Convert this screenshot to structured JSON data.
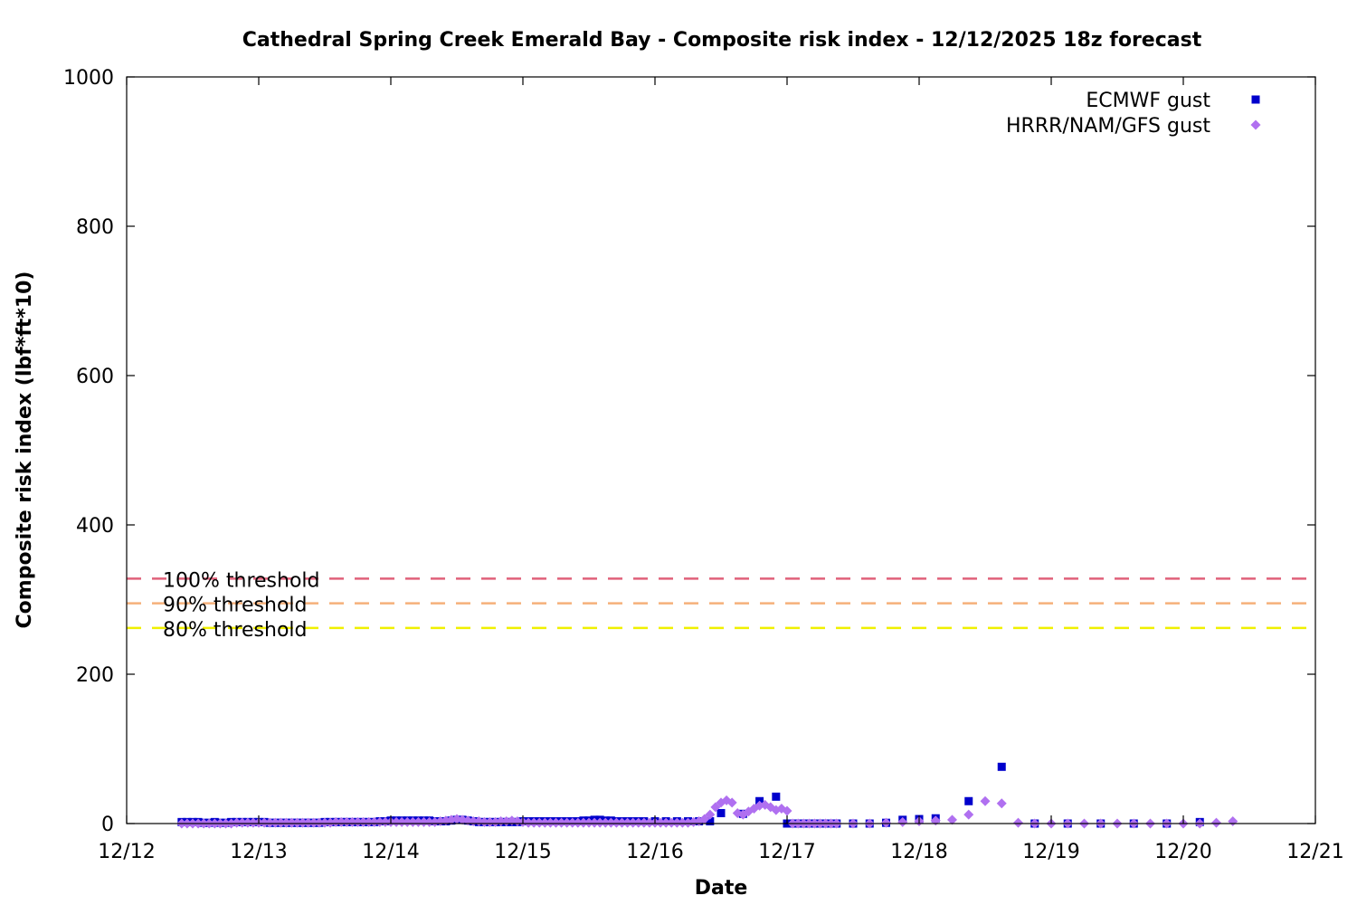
{
  "chart_data": {
    "type": "scatter",
    "title": "Cathedral Spring Creek Emerald Bay - Composite risk index - 12/12/2025 18z forecast",
    "xlabel": "Date",
    "ylabel": "Composite risk index (lbf*ft*10)",
    "xlim": [
      "2025-12-12 00:00",
      "2025-12-21 00:00"
    ],
    "ylim": [
      0,
      1000
    ],
    "x_ticks": [
      "12/12",
      "12/13",
      "12/14",
      "12/15",
      "12/16",
      "12/17",
      "12/18",
      "12/19",
      "12/20",
      "12/21"
    ],
    "y_ticks": [
      0,
      200,
      400,
      600,
      800,
      1000
    ],
    "grid": false,
    "legend_position": "top-right",
    "thresholds": [
      {
        "label": "100% threshold",
        "value": 328,
        "color": "#e0607a"
      },
      {
        "label": "90% threshold",
        "value": 295,
        "color": "#f5b07a"
      },
      {
        "label": "80% threshold",
        "value": 262,
        "color": "#f0f000"
      }
    ],
    "series": [
      {
        "name": "ECMWF gust",
        "marker": "square",
        "color": "#0000cc",
        "points": [
          [
            "2025-12-12 10:00",
            2
          ],
          [
            "2025-12-12 11:00",
            2
          ],
          [
            "2025-12-12 12:00",
            2
          ],
          [
            "2025-12-12 13:00",
            2
          ],
          [
            "2025-12-12 14:00",
            1
          ],
          [
            "2025-12-12 15:00",
            1
          ],
          [
            "2025-12-12 16:00",
            2
          ],
          [
            "2025-12-12 17:00",
            1
          ],
          [
            "2025-12-12 18:00",
            1
          ],
          [
            "2025-12-12 19:00",
            2
          ],
          [
            "2025-12-12 20:00",
            2
          ],
          [
            "2025-12-12 21:00",
            2
          ],
          [
            "2025-12-12 22:00",
            2
          ],
          [
            "2025-12-12 23:00",
            2
          ],
          [
            "2025-12-13 00:00",
            2
          ],
          [
            "2025-12-13 01:00",
            2
          ],
          [
            "2025-12-13 02:00",
            1
          ],
          [
            "2025-12-13 03:00",
            1
          ],
          [
            "2025-12-13 04:00",
            1
          ],
          [
            "2025-12-13 05:00",
            1
          ],
          [
            "2025-12-13 06:00",
            1
          ],
          [
            "2025-12-13 07:00",
            1
          ],
          [
            "2025-12-13 08:00",
            1
          ],
          [
            "2025-12-13 09:00",
            1
          ],
          [
            "2025-12-13 10:00",
            1
          ],
          [
            "2025-12-13 11:00",
            1
          ],
          [
            "2025-12-13 12:00",
            2
          ],
          [
            "2025-12-13 13:00",
            2
          ],
          [
            "2025-12-13 14:00",
            2
          ],
          [
            "2025-12-13 15:00",
            2
          ],
          [
            "2025-12-13 16:00",
            2
          ],
          [
            "2025-12-13 17:00",
            2
          ],
          [
            "2025-12-13 18:00",
            2
          ],
          [
            "2025-12-13 19:00",
            2
          ],
          [
            "2025-12-13 20:00",
            2
          ],
          [
            "2025-12-13 21:00",
            2
          ],
          [
            "2025-12-13 22:00",
            3
          ],
          [
            "2025-12-13 23:00",
            3
          ],
          [
            "2025-12-14 00:00",
            4
          ],
          [
            "2025-12-14 01:00",
            4
          ],
          [
            "2025-12-14 02:00",
            4
          ],
          [
            "2025-12-14 03:00",
            4
          ],
          [
            "2025-12-14 04:00",
            4
          ],
          [
            "2025-12-14 05:00",
            4
          ],
          [
            "2025-12-14 06:00",
            4
          ],
          [
            "2025-12-14 07:00",
            4
          ],
          [
            "2025-12-14 08:00",
            3
          ],
          [
            "2025-12-14 09:00",
            3
          ],
          [
            "2025-12-14 10:00",
            3
          ],
          [
            "2025-12-14 11:00",
            4
          ],
          [
            "2025-12-14 12:00",
            5
          ],
          [
            "2025-12-14 13:00",
            5
          ],
          [
            "2025-12-14 14:00",
            4
          ],
          [
            "2025-12-14 15:00",
            3
          ],
          [
            "2025-12-14 16:00",
            2
          ],
          [
            "2025-12-14 17:00",
            2
          ],
          [
            "2025-12-14 18:00",
            2
          ],
          [
            "2025-12-14 19:00",
            2
          ],
          [
            "2025-12-14 20:00",
            2
          ],
          [
            "2025-12-14 21:00",
            2
          ],
          [
            "2025-12-14 22:00",
            2
          ],
          [
            "2025-12-14 23:00",
            2
          ],
          [
            "2025-12-15 00:00",
            3
          ],
          [
            "2025-12-15 01:00",
            3
          ],
          [
            "2025-12-15 02:00",
            3
          ],
          [
            "2025-12-15 03:00",
            3
          ],
          [
            "2025-12-15 04:00",
            3
          ],
          [
            "2025-12-15 05:00",
            3
          ],
          [
            "2025-12-15 06:00",
            3
          ],
          [
            "2025-12-15 07:00",
            3
          ],
          [
            "2025-12-15 08:00",
            3
          ],
          [
            "2025-12-15 09:00",
            3
          ],
          [
            "2025-12-15 10:00",
            3
          ],
          [
            "2025-12-15 11:00",
            4
          ],
          [
            "2025-12-15 12:00",
            4
          ],
          [
            "2025-12-15 13:00",
            5
          ],
          [
            "2025-12-15 14:00",
            5
          ],
          [
            "2025-12-15 15:00",
            4
          ],
          [
            "2025-12-15 16:00",
            4
          ],
          [
            "2025-12-15 17:00",
            3
          ],
          [
            "2025-12-15 18:00",
            3
          ],
          [
            "2025-12-15 19:00",
            3
          ],
          [
            "2025-12-15 20:00",
            3
          ],
          [
            "2025-12-15 21:00",
            3
          ],
          [
            "2025-12-15 22:00",
            3
          ],
          [
            "2025-12-16 00:00",
            3
          ],
          [
            "2025-12-16 02:00",
            3
          ],
          [
            "2025-12-16 04:00",
            3
          ],
          [
            "2025-12-16 06:00",
            3
          ],
          [
            "2025-12-16 08:00",
            3
          ],
          [
            "2025-12-16 10:00",
            3
          ],
          [
            "2025-12-16 12:00",
            14
          ],
          [
            "2025-12-16 16:00",
            13
          ],
          [
            "2025-12-16 19:00",
            30
          ],
          [
            "2025-12-16 22:00",
            36
          ],
          [
            "2025-12-17 00:00",
            0
          ],
          [
            "2025-12-17 01:00",
            0
          ],
          [
            "2025-12-17 02:00",
            0
          ],
          [
            "2025-12-17 03:00",
            0
          ],
          [
            "2025-12-17 04:00",
            0
          ],
          [
            "2025-12-17 05:00",
            0
          ],
          [
            "2025-12-17 06:00",
            0
          ],
          [
            "2025-12-17 07:00",
            0
          ],
          [
            "2025-12-17 08:00",
            0
          ],
          [
            "2025-12-17 09:00",
            0
          ],
          [
            "2025-12-17 12:00",
            0
          ],
          [
            "2025-12-17 15:00",
            0
          ],
          [
            "2025-12-17 18:00",
            1
          ],
          [
            "2025-12-17 21:00",
            5
          ],
          [
            "2025-12-18 00:00",
            6
          ],
          [
            "2025-12-18 03:00",
            7
          ],
          [
            "2025-12-18 09:00",
            30
          ],
          [
            "2025-12-18 15:00",
            76
          ],
          [
            "2025-12-18 21:00",
            0
          ],
          [
            "2025-12-19 03:00",
            0
          ],
          [
            "2025-12-19 09:00",
            0
          ],
          [
            "2025-12-19 15:00",
            0
          ],
          [
            "2025-12-19 21:00",
            0
          ],
          [
            "2025-12-20 03:00",
            2
          ]
        ]
      },
      {
        "name": "HRRR/NAM/GFS gust",
        "marker": "diamond",
        "color": "#b070f0",
        "points": [
          [
            "2025-12-12 10:00",
            0
          ],
          [
            "2025-12-12 11:00",
            0
          ],
          [
            "2025-12-12 12:00",
            0
          ],
          [
            "2025-12-12 13:00",
            0
          ],
          [
            "2025-12-12 14:00",
            0
          ],
          [
            "2025-12-12 15:00",
            0
          ],
          [
            "2025-12-12 16:00",
            0
          ],
          [
            "2025-12-12 17:00",
            0
          ],
          [
            "2025-12-12 18:00",
            0
          ],
          [
            "2025-12-12 19:00",
            0
          ],
          [
            "2025-12-12 20:00",
            1
          ],
          [
            "2025-12-12 21:00",
            1
          ],
          [
            "2025-12-12 22:00",
            1
          ],
          [
            "2025-12-12 23:00",
            1
          ],
          [
            "2025-12-13 00:00",
            1
          ],
          [
            "2025-12-13 01:00",
            1
          ],
          [
            "2025-12-13 02:00",
            1
          ],
          [
            "2025-12-13 03:00",
            1
          ],
          [
            "2025-12-13 04:00",
            1
          ],
          [
            "2025-12-13 05:00",
            1
          ],
          [
            "2025-12-13 06:00",
            1
          ],
          [
            "2025-12-13 07:00",
            1
          ],
          [
            "2025-12-13 08:00",
            1
          ],
          [
            "2025-12-13 09:00",
            1
          ],
          [
            "2025-12-13 10:00",
            1
          ],
          [
            "2025-12-13 11:00",
            1
          ],
          [
            "2025-12-13 12:00",
            1
          ],
          [
            "2025-12-13 13:00",
            1
          ],
          [
            "2025-12-13 14:00",
            2
          ],
          [
            "2025-12-13 15:00",
            2
          ],
          [
            "2025-12-13 16:00",
            2
          ],
          [
            "2025-12-13 17:00",
            2
          ],
          [
            "2025-12-13 18:00",
            2
          ],
          [
            "2025-12-13 19:00",
            2
          ],
          [
            "2025-12-13 20:00",
            2
          ],
          [
            "2025-12-13 21:00",
            2
          ],
          [
            "2025-12-13 22:00",
            2
          ],
          [
            "2025-12-13 23:00",
            2
          ],
          [
            "2025-12-14 00:00",
            2
          ],
          [
            "2025-12-14 01:00",
            2
          ],
          [
            "2025-12-14 02:00",
            2
          ],
          [
            "2025-12-14 03:00",
            2
          ],
          [
            "2025-12-14 04:00",
            2
          ],
          [
            "2025-12-14 05:00",
            2
          ],
          [
            "2025-12-14 06:00",
            2
          ],
          [
            "2025-12-14 07:00",
            2
          ],
          [
            "2025-12-14 08:00",
            2
          ],
          [
            "2025-12-14 09:00",
            3
          ],
          [
            "2025-12-14 10:00",
            4
          ],
          [
            "2025-12-14 11:00",
            5
          ],
          [
            "2025-12-14 12:00",
            6
          ],
          [
            "2025-12-14 13:00",
            5
          ],
          [
            "2025-12-14 14:00",
            4
          ],
          [
            "2025-12-14 15:00",
            3
          ],
          [
            "2025-12-14 16:00",
            3
          ],
          [
            "2025-12-14 17:00",
            2
          ],
          [
            "2025-12-14 18:00",
            2
          ],
          [
            "2025-12-14 19:00",
            2
          ],
          [
            "2025-12-14 20:00",
            3
          ],
          [
            "2025-12-14 21:00",
            3
          ],
          [
            "2025-12-14 22:00",
            4
          ],
          [
            "2025-12-14 23:00",
            3
          ],
          [
            "2025-12-15 00:00",
            2
          ],
          [
            "2025-12-15 01:00",
            1
          ],
          [
            "2025-12-15 02:00",
            1
          ],
          [
            "2025-12-15 03:00",
            1
          ],
          [
            "2025-12-15 04:00",
            1
          ],
          [
            "2025-12-15 05:00",
            1
          ],
          [
            "2025-12-15 06:00",
            1
          ],
          [
            "2025-12-15 07:00",
            1
          ],
          [
            "2025-12-15 08:00",
            1
          ],
          [
            "2025-12-15 09:00",
            1
          ],
          [
            "2025-12-15 10:00",
            1
          ],
          [
            "2025-12-15 11:00",
            1
          ],
          [
            "2025-12-15 12:00",
            1
          ],
          [
            "2025-12-15 13:00",
            1
          ],
          [
            "2025-12-15 14:00",
            1
          ],
          [
            "2025-12-15 15:00",
            1
          ],
          [
            "2025-12-15 16:00",
            1
          ],
          [
            "2025-12-15 17:00",
            1
          ],
          [
            "2025-12-15 18:00",
            1
          ],
          [
            "2025-12-15 19:00",
            1
          ],
          [
            "2025-12-15 20:00",
            1
          ],
          [
            "2025-12-15 21:00",
            1
          ],
          [
            "2025-12-15 22:00",
            1
          ],
          [
            "2025-12-15 23:00",
            1
          ],
          [
            "2025-12-16 00:00",
            1
          ],
          [
            "2025-12-16 01:00",
            1
          ],
          [
            "2025-12-16 02:00",
            1
          ],
          [
            "2025-12-16 03:00",
            1
          ],
          [
            "2025-12-16 04:00",
            1
          ],
          [
            "2025-12-16 05:00",
            1
          ],
          [
            "2025-12-16 06:00",
            1
          ],
          [
            "2025-12-16 07:00",
            2
          ],
          [
            "2025-12-16 08:00",
            3
          ],
          [
            "2025-12-16 09:00",
            6
          ],
          [
            "2025-12-16 10:00",
            12
          ],
          [
            "2025-12-16 11:00",
            22
          ],
          [
            "2025-12-16 12:00",
            28
          ],
          [
            "2025-12-16 13:00",
            31
          ],
          [
            "2025-12-16 14:00",
            28
          ],
          [
            "2025-12-16 15:00",
            14
          ],
          [
            "2025-12-16 16:00",
            12
          ],
          [
            "2025-12-16 17:00",
            16
          ],
          [
            "2025-12-16 18:00",
            20
          ],
          [
            "2025-12-16 19:00",
            24
          ],
          [
            "2025-12-16 20:00",
            25
          ],
          [
            "2025-12-16 21:00",
            22
          ],
          [
            "2025-12-16 22:00",
            18
          ],
          [
            "2025-12-16 23:00",
            20
          ],
          [
            "2025-12-17 00:00",
            17
          ],
          [
            "2025-12-17 01:00",
            0
          ],
          [
            "2025-12-17 02:00",
            0
          ],
          [
            "2025-12-17 03:00",
            0
          ],
          [
            "2025-12-17 04:00",
            0
          ],
          [
            "2025-12-17 05:00",
            0
          ],
          [
            "2025-12-17 06:00",
            0
          ],
          [
            "2025-12-17 07:00",
            0
          ],
          [
            "2025-12-17 08:00",
            0
          ],
          [
            "2025-12-17 09:00",
            0
          ],
          [
            "2025-12-17 12:00",
            0
          ],
          [
            "2025-12-17 15:00",
            0
          ],
          [
            "2025-12-17 18:00",
            1
          ],
          [
            "2025-12-17 21:00",
            2
          ],
          [
            "2025-12-18 00:00",
            3
          ],
          [
            "2025-12-18 03:00",
            4
          ],
          [
            "2025-12-18 06:00",
            5
          ],
          [
            "2025-12-18 09:00",
            12
          ],
          [
            "2025-12-18 12:00",
            30
          ],
          [
            "2025-12-18 15:00",
            27
          ],
          [
            "2025-12-18 18:00",
            1
          ],
          [
            "2025-12-18 21:00",
            0
          ],
          [
            "2025-12-19 00:00",
            0
          ],
          [
            "2025-12-19 03:00",
            0
          ],
          [
            "2025-12-19 06:00",
            0
          ],
          [
            "2025-12-19 09:00",
            0
          ],
          [
            "2025-12-19 12:00",
            0
          ],
          [
            "2025-12-19 15:00",
            0
          ],
          [
            "2025-12-19 18:00",
            0
          ],
          [
            "2025-12-19 21:00",
            0
          ],
          [
            "2025-12-20 00:00",
            0
          ],
          [
            "2025-12-20 03:00",
            0
          ],
          [
            "2025-12-20 06:00",
            1
          ],
          [
            "2025-12-20 09:00",
            3
          ]
        ]
      }
    ]
  }
}
